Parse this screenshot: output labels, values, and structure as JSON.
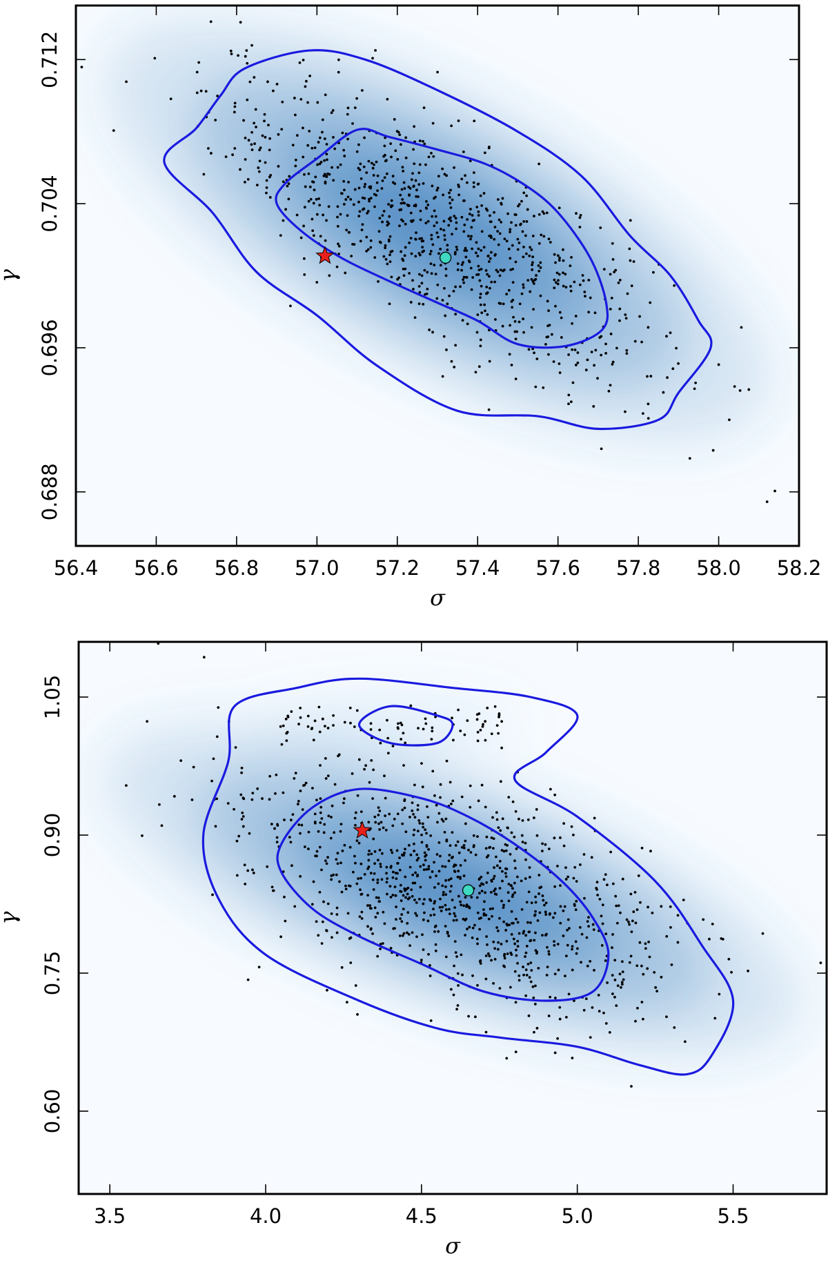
{
  "chart_data": [
    {
      "type": "scatter",
      "xlabel": "σ",
      "ylabel": "γ",
      "xlim": [
        56.4,
        58.2
      ],
      "ylim": [
        0.685,
        0.715
      ],
      "xticks": [
        "56.4",
        "56.6",
        "56.8",
        "57.0",
        "57.2",
        "57.4",
        "57.6",
        "57.8",
        "58.0",
        "58.2"
      ],
      "yticks": [
        "0.688",
        "0.696",
        "0.704",
        "0.712"
      ],
      "grid": false,
      "density_peak": {
        "x": 57.3,
        "y": 0.7025,
        "sx": 0.28,
        "sy": 0.0042,
        "rho": -0.75
      },
      "scatter_count": 900,
      "contours": [
        {
          "level": "inner",
          "points": [
            [
              56.92,
              0.7051
            ],
            [
              57.0,
              0.7065
            ],
            [
              57.1,
              0.7081
            ],
            [
              57.18,
              0.7077
            ],
            [
              57.3,
              0.707
            ],
            [
              57.42,
              0.7062
            ],
            [
              57.52,
              0.705
            ],
            [
              57.6,
              0.7035
            ],
            [
              57.68,
              0.701
            ],
            [
              57.72,
              0.6985
            ],
            [
              57.71,
              0.697
            ],
            [
              57.62,
              0.6961
            ],
            [
              57.5,
              0.6962
            ],
            [
              57.4,
              0.6975
            ],
            [
              57.3,
              0.6985
            ],
            [
              57.18,
              0.6997
            ],
            [
              57.06,
              0.701
            ],
            [
              56.96,
              0.7025
            ],
            [
              56.9,
              0.704
            ]
          ]
        },
        {
          "level": "outer",
          "points": [
            [
              56.62,
              0.7063
            ],
            [
              56.7,
              0.7082
            ],
            [
              56.76,
              0.71
            ],
            [
              56.82,
              0.7115
            ],
            [
              56.98,
              0.7125
            ],
            [
              57.12,
              0.712
            ],
            [
              57.3,
              0.7103
            ],
            [
              57.5,
              0.708
            ],
            [
              57.66,
              0.7055
            ],
            [
              57.78,
              0.7022
            ],
            [
              57.88,
              0.7
            ],
            [
              57.95,
              0.6975
            ],
            [
              57.98,
              0.696
            ],
            [
              57.9,
              0.6935
            ],
            [
              57.85,
              0.692
            ],
            [
              57.7,
              0.6915
            ],
            [
              57.55,
              0.6922
            ],
            [
              57.35,
              0.6925
            ],
            [
              57.15,
              0.695
            ],
            [
              57.0,
              0.6978
            ],
            [
              56.85,
              0.7002
            ],
            [
              56.74,
              0.7035
            ]
          ]
        }
      ],
      "markers": [
        {
          "name": "star",
          "x": 57.02,
          "y": 0.7011,
          "color": "#e8201a"
        },
        {
          "name": "circle",
          "x": 57.32,
          "y": 0.701,
          "color": "#3fd8c0"
        }
      ]
    },
    {
      "type": "scatter",
      "xlabel": "σ",
      "ylabel": "γ",
      "xlim": [
        3.4,
        5.8
      ],
      "ylim": [
        0.51,
        1.11
      ],
      "xticks": [
        "3.5",
        "4.0",
        "4.5",
        "5.0",
        "5.5"
      ],
      "yticks": [
        "0.60",
        "0.75",
        "0.90",
        "1.05"
      ],
      "grid": false,
      "density_peak": {
        "x": 4.6,
        "y": 0.84,
        "sx": 0.36,
        "sy": 0.07,
        "rho": -0.55
      },
      "secondary_peak": {
        "x": 4.4,
        "y": 1.02,
        "sx": 0.4,
        "sy": 0.012,
        "count": 80
      },
      "scatter_count": 1000,
      "contours": [
        {
          "level": "inner",
          "points": [
            [
              4.05,
              0.89
            ],
            [
              4.15,
              0.93
            ],
            [
              4.3,
              0.95
            ],
            [
              4.5,
              0.94
            ],
            [
              4.65,
              0.92
            ],
            [
              4.8,
              0.89
            ],
            [
              4.95,
              0.85
            ],
            [
              5.05,
              0.81
            ],
            [
              5.1,
              0.77
            ],
            [
              5.05,
              0.73
            ],
            [
              4.9,
              0.72
            ],
            [
              4.7,
              0.73
            ],
            [
              4.5,
              0.76
            ],
            [
              4.3,
              0.79
            ],
            [
              4.15,
              0.82
            ],
            [
              4.05,
              0.86
            ]
          ]
        },
        {
          "level": "inner-top",
          "points": [
            [
              4.3,
              1.02
            ],
            [
              4.4,
              1.04
            ],
            [
              4.55,
              1.03
            ],
            [
              4.6,
              1.02
            ],
            [
              4.55,
              1.0
            ],
            [
              4.4,
              1.0
            ]
          ]
        },
        {
          "level": "outer",
          "points": [
            [
              3.8,
              0.9
            ],
            [
              3.88,
              0.98
            ],
            [
              3.9,
              1.04
            ],
            [
              4.1,
              1.06
            ],
            [
              4.3,
              1.07
            ],
            [
              4.6,
              1.06
            ],
            [
              4.85,
              1.05
            ],
            [
              5.0,
              1.03
            ],
            [
              4.9,
              0.99
            ],
            [
              4.8,
              0.96
            ],
            [
              5.0,
              0.92
            ],
            [
              5.25,
              0.85
            ],
            [
              5.4,
              0.78
            ],
            [
              5.5,
              0.72
            ],
            [
              5.43,
              0.66
            ],
            [
              5.35,
              0.64
            ],
            [
              5.2,
              0.65
            ],
            [
              5.0,
              0.67
            ],
            [
              4.75,
              0.68
            ],
            [
              4.55,
              0.69
            ],
            [
              4.3,
              0.72
            ],
            [
              4.0,
              0.77
            ],
            [
              3.85,
              0.83
            ]
          ]
        }
      ],
      "markers": [
        {
          "name": "star",
          "x": 4.31,
          "y": 0.905,
          "color": "#e8201a"
        },
        {
          "name": "circle",
          "x": 4.65,
          "y": 0.84,
          "color": "#3fd8c0"
        }
      ]
    }
  ]
}
